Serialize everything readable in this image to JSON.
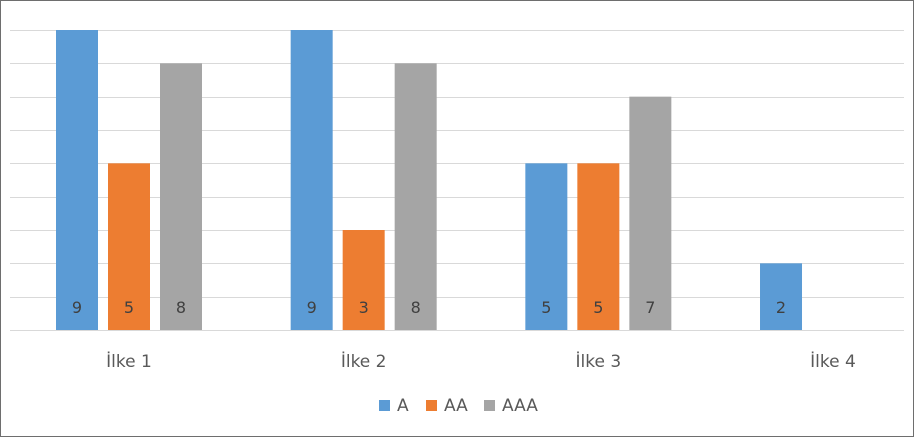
{
  "chart_data": {
    "type": "bar",
    "title": "",
    "xlabel": "",
    "ylabel": "",
    "categories": [
      "İlke 1",
      "İlke 2",
      "İlke 3",
      "İlke 4"
    ],
    "series": [
      {
        "name": "A",
        "color": "#5B9BD5",
        "values": [
          9,
          9,
          5,
          2
        ]
      },
      {
        "name": "AA",
        "color": "#ED7D31",
        "values": [
          5,
          3,
          5,
          0
        ]
      },
      {
        "name": "AAA",
        "color": "#A5A5A5",
        "values": [
          8,
          8,
          7,
          0
        ]
      }
    ],
    "ylim": [
      0,
      9
    ],
    "y_axis_visible": false,
    "grid": true,
    "gridline_step": 1,
    "data_labels": "inside-base",
    "legend_position": "bottom"
  }
}
